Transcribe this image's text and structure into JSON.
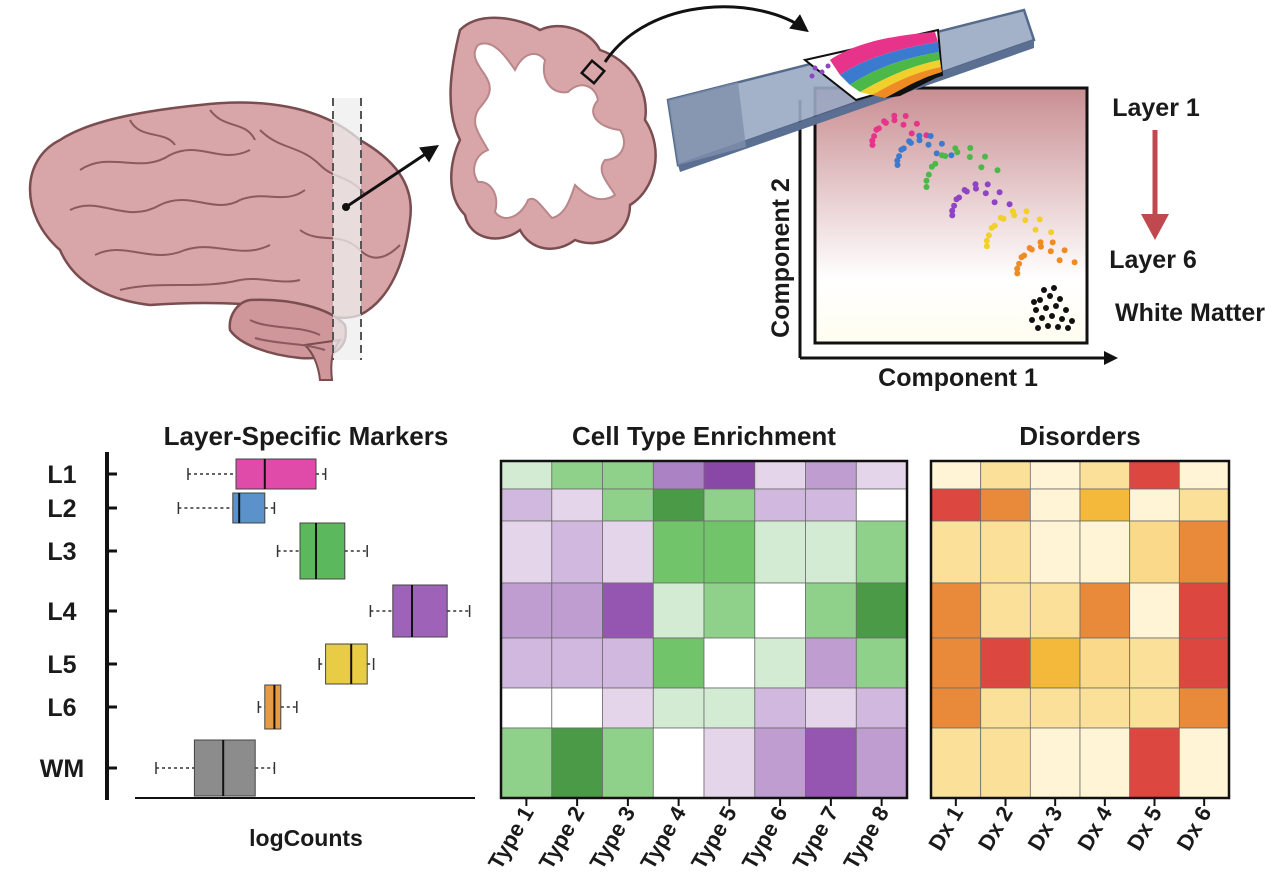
{
  "umap": {
    "y_label": "Component 2",
    "x_label": "Component 1",
    "top_label": "Layer 1",
    "mid_label": "Layer 6",
    "bottom_label": "White Matter",
    "arrow_color": "#c0494f",
    "clusters": [
      {
        "color": "#e8338a"
      },
      {
        "color": "#3a7bd0"
      },
      {
        "color": "#4cb848"
      },
      {
        "color": "#8e44c4"
      },
      {
        "color": "#f2d02c"
      },
      {
        "color": "#f08a22"
      },
      {
        "color": "#111111"
      }
    ]
  },
  "markers": {
    "title": "Layer-Specific Markers",
    "xlabel": "logCounts",
    "rows": [
      {
        "label": "L1",
        "color": "#e04aa8",
        "whisker_low": 0.15,
        "q1": 0.3,
        "median": 0.39,
        "q3": 0.55,
        "whisker_high": 0.58
      },
      {
        "label": "L2",
        "color": "#5b92cc",
        "whisker_low": 0.12,
        "q1": 0.29,
        "median": 0.31,
        "q3": 0.39,
        "whisker_high": 0.42
      },
      {
        "label": "L3",
        "color": "#5cb85c",
        "whisker_low": 0.43,
        "q1": 0.5,
        "median": 0.55,
        "q3": 0.64,
        "whisker_high": 0.71
      },
      {
        "label": "L4",
        "color": "#9e62b8",
        "whisker_low": 0.72,
        "q1": 0.79,
        "median": 0.85,
        "q3": 0.96,
        "whisker_high": 1.03
      },
      {
        "label": "L5",
        "color": "#e8cc45",
        "whisker_low": 0.56,
        "q1": 0.58,
        "median": 0.66,
        "q3": 0.71,
        "whisker_high": 0.73
      },
      {
        "label": "L6",
        "color": "#e89b45",
        "whisker_low": 0.37,
        "q1": 0.39,
        "median": 0.42,
        "q3": 0.44,
        "whisker_high": 0.49
      },
      {
        "label": "WM",
        "color": "#8c8c8c",
        "whisker_low": 0.05,
        "q1": 0.17,
        "median": 0.26,
        "q3": 0.36,
        "whisker_high": 0.42
      }
    ]
  },
  "enrichment": {
    "title": "Cell Type Enrichment",
    "columns": [
      "Type 1",
      "Type 2",
      "Type 3",
      "Type 4",
      "Type 5",
      "Type 6",
      "Type 7",
      "Type 8"
    ],
    "row_heights": [
      28,
      32,
      62,
      55,
      50,
      40,
      70
    ],
    "values": [
      [
        1,
        3,
        3,
        -4,
        -6,
        -1,
        -3,
        -1
      ],
      [
        -2,
        -1,
        3,
        6,
        3,
        -2,
        -2,
        0
      ],
      [
        -1,
        -2,
        -1,
        4,
        4,
        1,
        1,
        3
      ],
      [
        -3,
        -3,
        -5,
        1,
        3,
        0,
        3,
        6
      ],
      [
        -2,
        -2,
        -2,
        4,
        0,
        1,
        -3,
        3
      ],
      [
        0,
        0,
        -1,
        1,
        1,
        -2,
        -1,
        -2
      ],
      [
        3,
        6,
        3,
        0,
        -1,
        -3,
        -5,
        -3
      ]
    ]
  },
  "disorders": {
    "title": "Disorders",
    "columns": [
      "Dx 1",
      "Dx 2",
      "Dx 3",
      "Dx 4",
      "Dx 5",
      "Dx 6"
    ],
    "row_heights": [
      28,
      32,
      62,
      55,
      50,
      40,
      70
    ],
    "values": [
      [
        0,
        1,
        0,
        1,
        5,
        0
      ],
      [
        5,
        4,
        0,
        3,
        0,
        1
      ],
      [
        1,
        1,
        0,
        0,
        2,
        4
      ],
      [
        4,
        1,
        1,
        4,
        0,
        5
      ],
      [
        4,
        5,
        3,
        2,
        1,
        5
      ],
      [
        4,
        1,
        1,
        1,
        1,
        4
      ],
      [
        1,
        1,
        0,
        0,
        5,
        0
      ]
    ]
  }
}
